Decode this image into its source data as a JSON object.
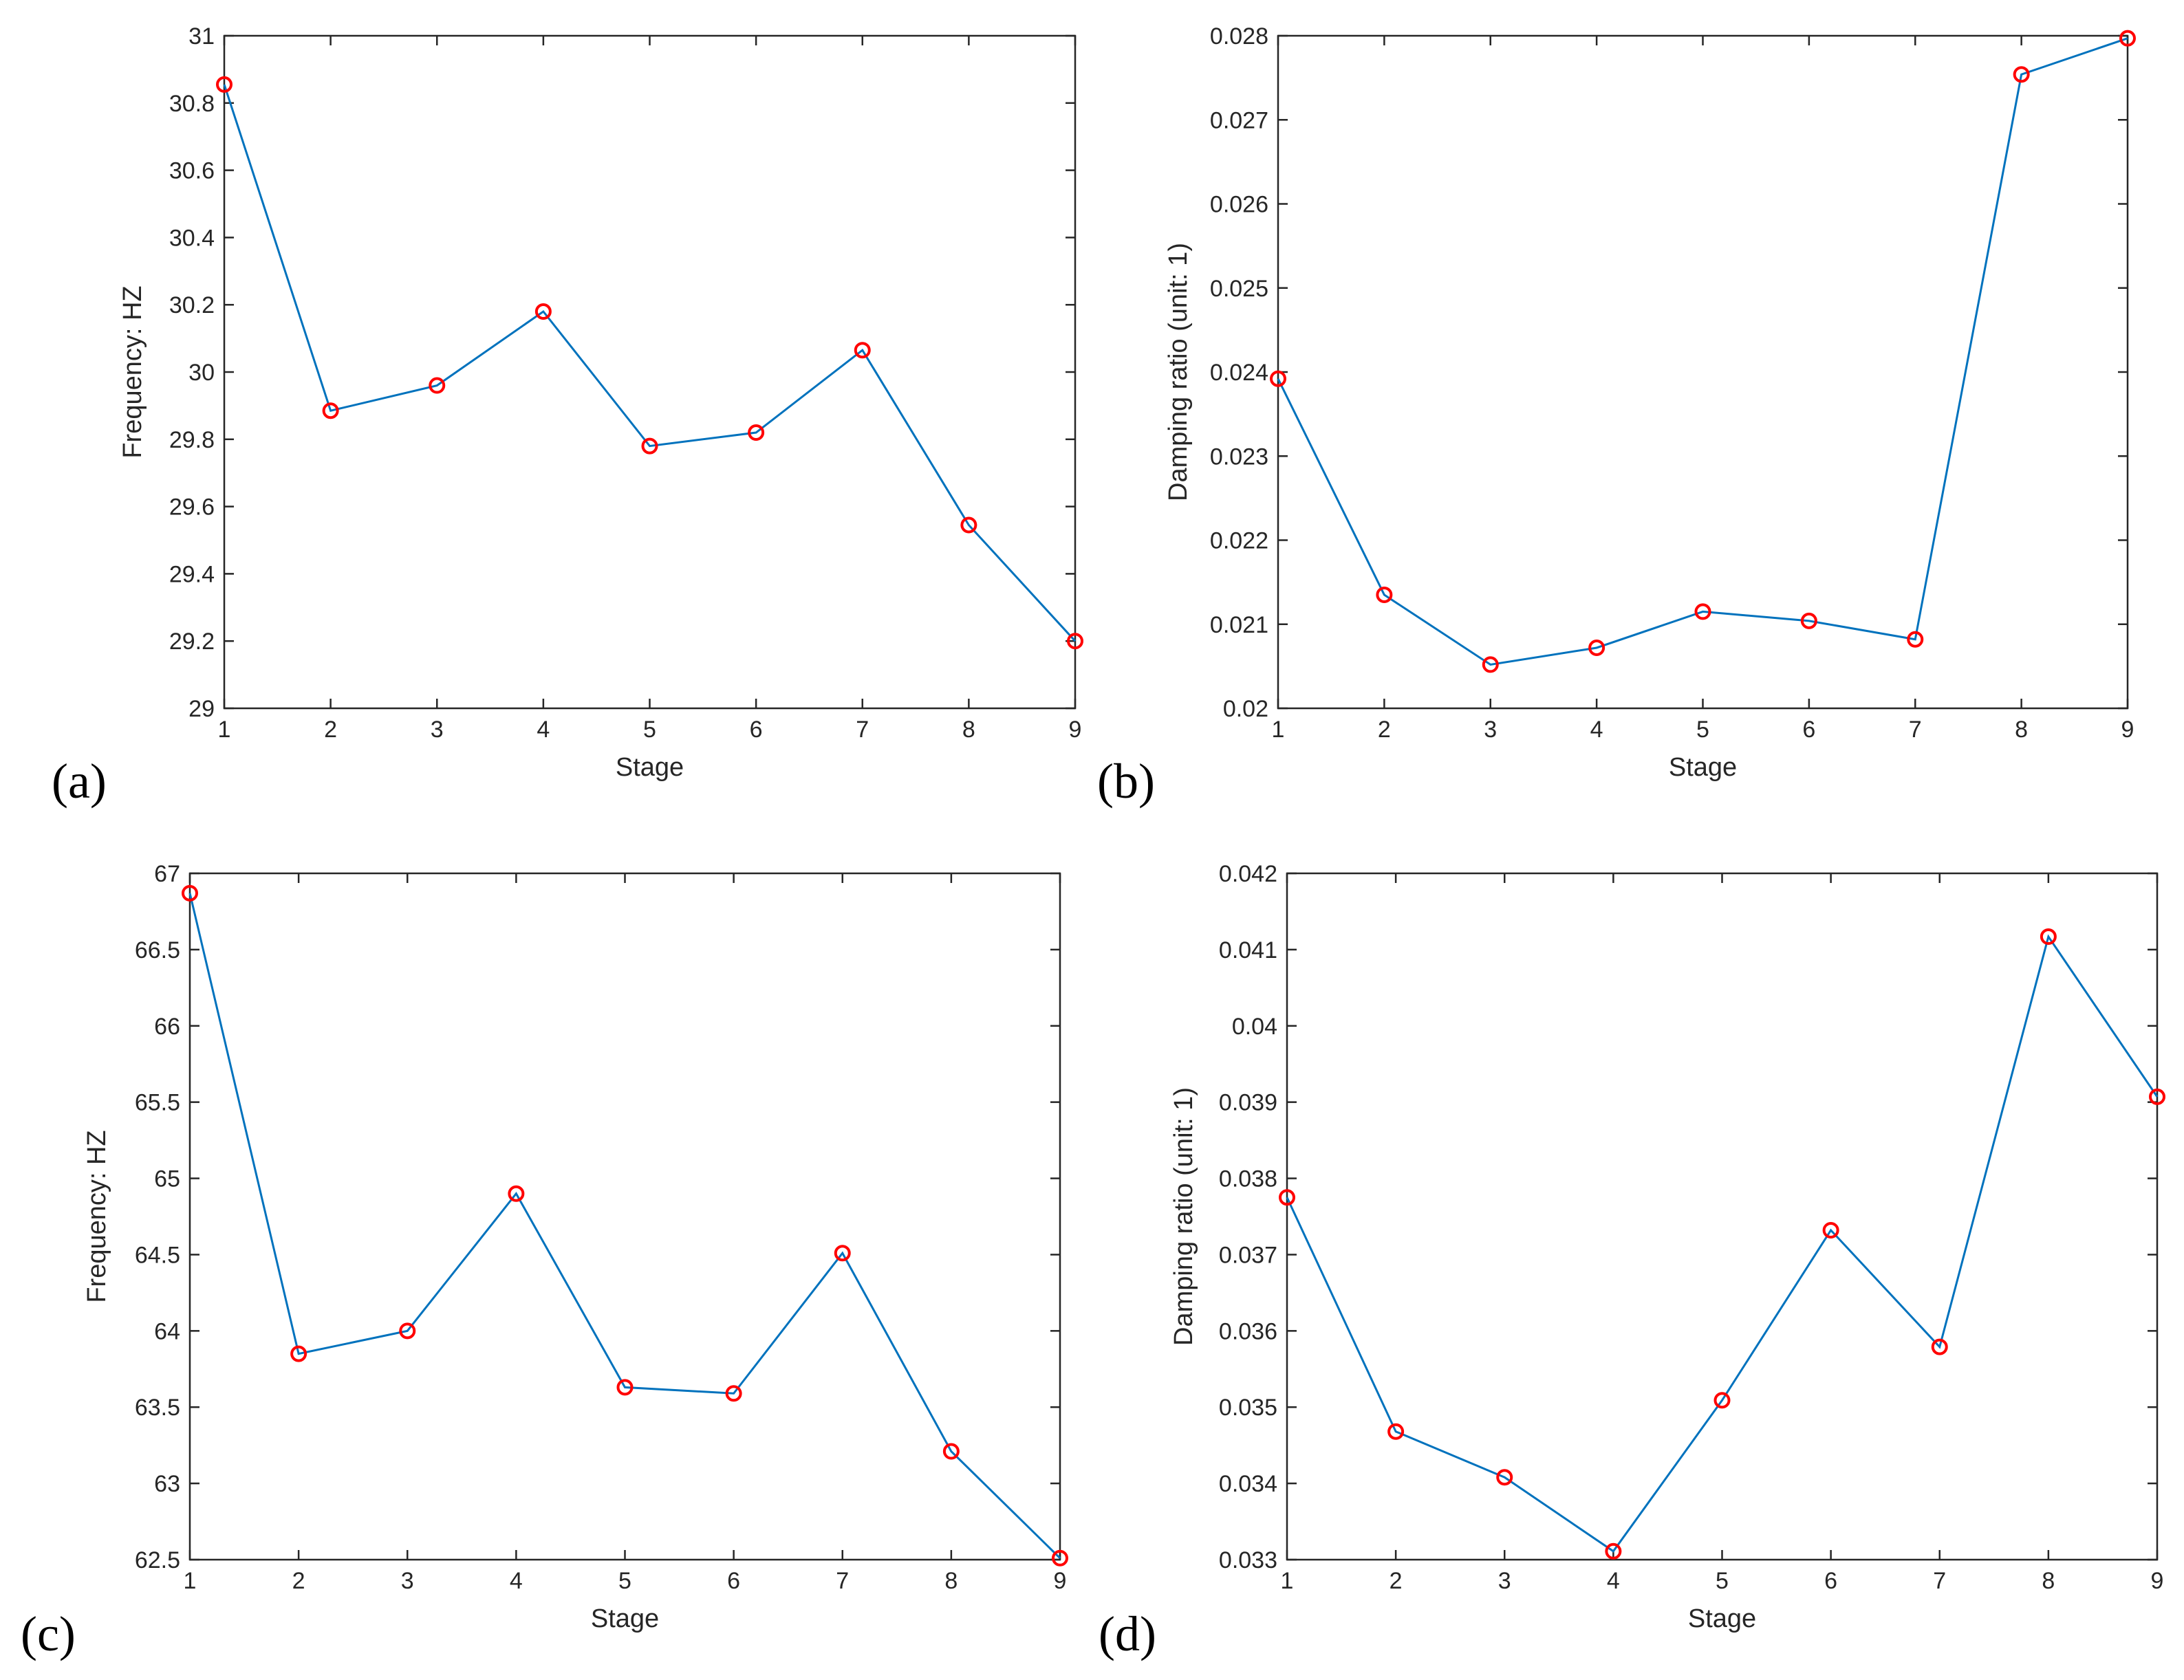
{
  "colors": {
    "line": "#0072BD",
    "marker": "#FF0000",
    "axis": "#262626",
    "background": "#ffffff"
  },
  "chart_data": [
    {
      "id": "a",
      "type": "line",
      "panel_label": "(a)",
      "title": "",
      "xlabel": "Stage",
      "ylabel": "Frequency: HZ",
      "x": [
        1,
        2,
        3,
        4,
        5,
        6,
        7,
        8,
        9
      ],
      "values": [
        30.855,
        29.885,
        29.96,
        30.18,
        29.78,
        29.82,
        30.065,
        29.545,
        29.2
      ],
      "xlim": [
        1,
        9
      ],
      "ylim": [
        29,
        31
      ],
      "xticks": [
        1,
        2,
        3,
        4,
        5,
        6,
        7,
        8,
        9
      ],
      "xtick_labels": [
        "1",
        "2",
        "3",
        "4",
        "5",
        "6",
        "7",
        "8",
        "9"
      ],
      "yticks": [
        29,
        29.2,
        29.4,
        29.6,
        29.8,
        30,
        30.2,
        30.4,
        30.6,
        30.8,
        31
      ],
      "ytick_labels": [
        "29",
        "29.2",
        "29.4",
        "29.6",
        "29.8",
        "30",
        "30.2",
        "30.4",
        "30.6",
        "30.8",
        "31"
      ],
      "grid": false,
      "markers": "circle"
    },
    {
      "id": "b",
      "type": "line",
      "panel_label": "(b)",
      "title": "",
      "xlabel": "Stage",
      "ylabel": "Damping ratio (unit: 1)",
      "x": [
        1,
        2,
        3,
        4,
        5,
        6,
        7,
        8,
        9
      ],
      "values": [
        0.02392,
        0.02135,
        0.02052,
        0.02072,
        0.02115,
        0.02104,
        0.02082,
        0.02754,
        0.02797
      ],
      "xlim": [
        1,
        9
      ],
      "ylim": [
        0.02,
        0.028
      ],
      "xticks": [
        1,
        2,
        3,
        4,
        5,
        6,
        7,
        8,
        9
      ],
      "xtick_labels": [
        "1",
        "2",
        "3",
        "4",
        "5",
        "6",
        "7",
        "8",
        "9"
      ],
      "yticks": [
        0.02,
        0.021,
        0.022,
        0.023,
        0.024,
        0.025,
        0.026,
        0.027,
        0.028
      ],
      "ytick_labels": [
        "0.02",
        "0.021",
        "0.022",
        "0.023",
        "0.024",
        "0.025",
        "0.026",
        "0.027",
        "0.028"
      ],
      "grid": false,
      "markers": "circle"
    },
    {
      "id": "c",
      "type": "line",
      "panel_label": "(c)",
      "title": "",
      "xlabel": "Stage",
      "ylabel": "Frequency: HZ",
      "x": [
        1,
        2,
        3,
        4,
        5,
        6,
        7,
        8,
        9
      ],
      "values": [
        66.87,
        63.85,
        64.0,
        64.9,
        63.63,
        63.59,
        64.51,
        63.21,
        62.51
      ],
      "xlim": [
        1,
        9
      ],
      "ylim": [
        62.5,
        67
      ],
      "xticks": [
        1,
        2,
        3,
        4,
        5,
        6,
        7,
        8,
        9
      ],
      "xtick_labels": [
        "1",
        "2",
        "3",
        "4",
        "5",
        "6",
        "7",
        "8",
        "9"
      ],
      "yticks": [
        62.5,
        63,
        63.5,
        64,
        64.5,
        65,
        65.5,
        66,
        66.5,
        67
      ],
      "ytick_labels": [
        "62.5",
        "63",
        "63.5",
        "64",
        "64.5",
        "65",
        "65.5",
        "66",
        "66.5",
        "67"
      ],
      "grid": false,
      "markers": "circle"
    },
    {
      "id": "d",
      "type": "line",
      "panel_label": "(d)",
      "title": "",
      "xlabel": "Stage",
      "ylabel": "Damping ratio (unit: 1)",
      "x": [
        1,
        2,
        3,
        4,
        5,
        6,
        7,
        8,
        9
      ],
      "values": [
        0.03775,
        0.03468,
        0.03408,
        0.03311,
        0.03509,
        0.03732,
        0.03579,
        0.04117,
        0.03907
      ],
      "xlim": [
        1,
        9
      ],
      "ylim": [
        0.033,
        0.042
      ],
      "xticks": [
        1,
        2,
        3,
        4,
        5,
        6,
        7,
        8,
        9
      ],
      "xtick_labels": [
        "1",
        "2",
        "3",
        "4",
        "5",
        "6",
        "7",
        "8",
        "9"
      ],
      "yticks": [
        0.033,
        0.034,
        0.035,
        0.036,
        0.037,
        0.038,
        0.039,
        0.04,
        0.041,
        0.042
      ],
      "ytick_labels": [
        "0.033",
        "0.034",
        "0.035",
        "0.036",
        "0.037",
        "0.038",
        "0.039",
        "0.04",
        "0.041",
        "0.042"
      ],
      "grid": false,
      "markers": "circle"
    }
  ]
}
